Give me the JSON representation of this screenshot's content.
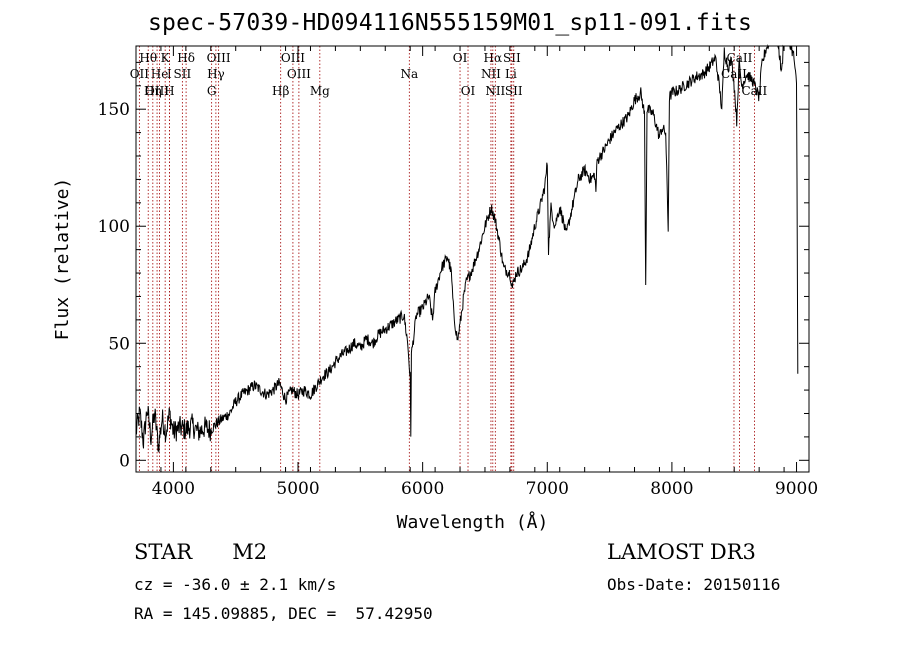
{
  "title": "spec-57039-HD094116N555159M01_sp11-091.fits",
  "chart_data": {
    "type": "line",
    "xlabel": "Wavelength (Å)",
    "ylabel": "Flux (relative)",
    "xlim": [
      3700,
      9100
    ],
    "ylim": [
      -5,
      177
    ],
    "xticks": [
      4000,
      5000,
      6000,
      7000,
      8000,
      9000
    ],
    "yticks": [
      0,
      50,
      100,
      150
    ],
    "series": [
      {
        "name": "spectrum",
        "points": [
          [
            3700,
            12
          ],
          [
            3730,
            20
          ],
          [
            3760,
            8
          ],
          [
            3790,
            22
          ],
          [
            3820,
            10
          ],
          [
            3850,
            20
          ],
          [
            3880,
            6
          ],
          [
            3910,
            18
          ],
          [
            3940,
            12
          ],
          [
            3970,
            20
          ],
          [
            4000,
            12
          ],
          [
            4050,
            14
          ],
          [
            4100,
            13
          ],
          [
            4150,
            15
          ],
          [
            4200,
            12
          ],
          [
            4250,
            14
          ],
          [
            4300,
            13
          ],
          [
            4350,
            16
          ],
          [
            4400,
            18
          ],
          [
            4450,
            20
          ],
          [
            4500,
            25
          ],
          [
            4550,
            28
          ],
          [
            4600,
            30
          ],
          [
            4650,
            32
          ],
          [
            4700,
            30
          ],
          [
            4750,
            28
          ],
          [
            4800,
            30
          ],
          [
            4850,
            33
          ],
          [
            4900,
            26
          ],
          [
            4950,
            30
          ],
          [
            5000,
            28
          ],
          [
            5050,
            30
          ],
          [
            5100,
            28
          ],
          [
            5150,
            32
          ],
          [
            5200,
            36
          ],
          [
            5250,
            38
          ],
          [
            5300,
            42
          ],
          [
            5350,
            45
          ],
          [
            5400,
            47
          ],
          [
            5450,
            50
          ],
          [
            5500,
            48
          ],
          [
            5550,
            52
          ],
          [
            5600,
            50
          ],
          [
            5650,
            54
          ],
          [
            5700,
            56
          ],
          [
            5750,
            58
          ],
          [
            5800,
            60
          ],
          [
            5850,
            62
          ],
          [
            5880,
            50
          ],
          [
            5900,
            35
          ],
          [
            5905,
            11
          ],
          [
            5910,
            45
          ],
          [
            5950,
            62
          ],
          [
            6000,
            65
          ],
          [
            6050,
            70
          ],
          [
            6080,
            60
          ],
          [
            6100,
            72
          ],
          [
            6150,
            82
          ],
          [
            6200,
            87
          ],
          [
            6230,
            80
          ],
          [
            6250,
            62
          ],
          [
            6280,
            51
          ],
          [
            6300,
            58
          ],
          [
            6330,
            70
          ],
          [
            6350,
            76
          ],
          [
            6400,
            82
          ],
          [
            6450,
            90
          ],
          [
            6500,
            100
          ],
          [
            6550,
            108
          ],
          [
            6580,
            103
          ],
          [
            6600,
            98
          ],
          [
            6620,
            92
          ],
          [
            6650,
            82
          ],
          [
            6700,
            80
          ],
          [
            6720,
            74
          ],
          [
            6750,
            80
          ],
          [
            6800,
            82
          ],
          [
            6850,
            88
          ],
          [
            6900,
            100
          ],
          [
            6950,
            110
          ],
          [
            6980,
            117
          ],
          [
            7000,
            127
          ],
          [
            7010,
            90
          ],
          [
            7030,
            108
          ],
          [
            7060,
            100
          ],
          [
            7100,
            108
          ],
          [
            7130,
            102
          ],
          [
            7150,
            96
          ],
          [
            7200,
            108
          ],
          [
            7250,
            120
          ],
          [
            7300,
            124
          ],
          [
            7350,
            120
          ],
          [
            7380,
            122
          ],
          [
            7390,
            115
          ],
          [
            7400,
            128
          ],
          [
            7450,
            132
          ],
          [
            7500,
            137
          ],
          [
            7550,
            141
          ],
          [
            7600,
            144
          ],
          [
            7650,
            147
          ],
          [
            7700,
            154
          ],
          [
            7750,
            157
          ],
          [
            7780,
            148
          ],
          [
            7790,
            75
          ],
          [
            7800,
            150
          ],
          [
            7850,
            148
          ],
          [
            7900,
            138
          ],
          [
            7920,
            142
          ],
          [
            7950,
            140
          ],
          [
            7970,
            98
          ],
          [
            7980,
            155
          ],
          [
            8000,
            157
          ],
          [
            8050,
            158
          ],
          [
            8100,
            160
          ],
          [
            8150,
            162
          ],
          [
            8200,
            164
          ],
          [
            8250,
            165
          ],
          [
            8300,
            168
          ],
          [
            8350,
            172
          ],
          [
            8380,
            160
          ],
          [
            8400,
            150
          ],
          [
            8420,
            175
          ],
          [
            8450,
            168
          ],
          [
            8480,
            171
          ],
          [
            8500,
            160
          ],
          [
            8520,
            145
          ],
          [
            8540,
            170
          ],
          [
            8560,
            160
          ],
          [
            8600,
            165
          ],
          [
            8650,
            162
          ],
          [
            8700,
            155
          ],
          [
            8720,
            168
          ],
          [
            8750,
            175
          ],
          [
            8800,
            182
          ],
          [
            8850,
            180
          ],
          [
            8880,
            165
          ],
          [
            8900,
            182
          ],
          [
            8950,
            178
          ],
          [
            8980,
            172
          ],
          [
            9000,
            160
          ],
          [
            9010,
            37
          ]
        ]
      }
    ],
    "lines": [
      {
        "label": "Hθ",
        "x": 3798,
        "row": 0
      },
      {
        "label": "OII",
        "x": 3727,
        "row": 1
      },
      {
        "label": "OIII",
        "x": 3869,
        "row": 2
      },
      {
        "label": "He",
        "x": 3889,
        "row": 1
      },
      {
        "label": "K",
        "x": 3934,
        "row": 0
      },
      {
        "label": "I",
        "x": 3968,
        "row": 1
      },
      {
        "label": "Hη",
        "x": 3835,
        "row": 2
      },
      {
        "label": "H",
        "x": 3968,
        "row": 2
      },
      {
        "label": "SII",
        "x": 4072,
        "row": 1
      },
      {
        "label": "Hδ",
        "x": 4102,
        "row": 0
      },
      {
        "label": "OIII",
        "x": 4363,
        "row": 0
      },
      {
        "label": "Hγ",
        "x": 4341,
        "row": 1
      },
      {
        "label": "G",
        "x": 4307,
        "row": 2
      },
      {
        "label": "OIII",
        "x": 4959,
        "row": 0
      },
      {
        "label": "OIII",
        "x": 5007,
        "row": 1
      },
      {
        "label": "Hβ",
        "x": 4861,
        "row": 2
      },
      {
        "label": "Mg",
        "x": 5175,
        "row": 2
      },
      {
        "label": "Na",
        "x": 5893,
        "row": 1
      },
      {
        "label": "OI",
        "x": 6300,
        "row": 0
      },
      {
        "label": "OI",
        "x": 6364,
        "row": 2
      },
      {
        "label": "Hα",
        "x": 6563,
        "row": 0
      },
      {
        "label": "SII",
        "x": 6716,
        "row": 0
      },
      {
        "label": "NII",
        "x": 6548,
        "row": 1
      },
      {
        "label": "Li",
        "x": 6708,
        "row": 1
      },
      {
        "label": "NII",
        "x": 6583,
        "row": 2
      },
      {
        "label": "SII",
        "x": 6731,
        "row": 2
      },
      {
        "label": "CaII",
        "x": 8542,
        "row": 0
      },
      {
        "label": "CaII",
        "x": 8498,
        "row": 1
      },
      {
        "label": "CaII",
        "x": 8662,
        "row": 2
      }
    ]
  },
  "info": {
    "class": "STAR",
    "subclass": "M2",
    "survey": "LAMOST DR3",
    "cz": "cz = -36.0 ± 2.1 km/s",
    "obs_date": "Obs-Date: 20150116",
    "radec": "RA = 145.09885, DEC =  57.42950"
  }
}
